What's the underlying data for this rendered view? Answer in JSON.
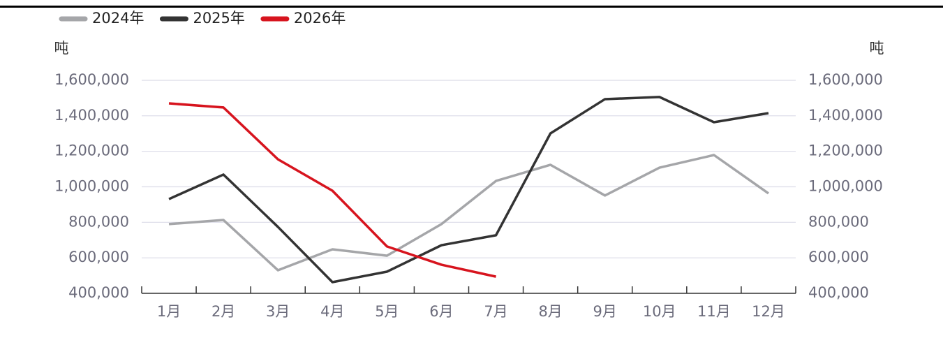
{
  "chart_data": {
    "type": "line",
    "y_label": "吨",
    "y2_label": "吨",
    "categories": [
      "1月",
      "2月",
      "3月",
      "4月",
      "5月",
      "6月",
      "7月",
      "8月",
      "9月",
      "10月",
      "11月",
      "12月"
    ],
    "series": [
      {
        "name": "2024年",
        "color": "#a5a6a9",
        "values": [
          790000,
          813000,
          530000,
          648000,
          612000,
          790000,
          1033000,
          1124000,
          951000,
          1108000,
          1179000,
          963000
        ]
      },
      {
        "name": "2025年",
        "color": "#333333",
        "values": [
          931000,
          1069000,
          774000,
          463000,
          522000,
          671000,
          727000,
          1301000,
          1494000,
          1506000,
          1364000,
          1415000
        ]
      },
      {
        "name": "2026年",
        "color": "#d7141e",
        "values": [
          1470000,
          1447000,
          1155000,
          978000,
          664000,
          561000,
          494000,
          null,
          null,
          null,
          null,
          null
        ]
      }
    ],
    "ylim": [
      400000,
      1600000
    ],
    "yticks": [
      {
        "value": 400000,
        "label": "400,000"
      },
      {
        "value": 600000,
        "label": "600,000"
      },
      {
        "value": 800000,
        "label": "800,000"
      },
      {
        "value": 1000000,
        "label": "1,000,000"
      },
      {
        "value": 1200000,
        "label": "1,200,000"
      },
      {
        "value": 1400000,
        "label": "1,400,000"
      },
      {
        "value": 1600000,
        "label": "1,600,000"
      }
    ],
    "y2lim": [
      400000,
      1600000
    ],
    "y2ticks": [
      {
        "value": 400000,
        "label": "400,000"
      },
      {
        "value": 600000,
        "label": "600,000"
      },
      {
        "value": 800000,
        "label": "800,000"
      },
      {
        "value": 1000000,
        "label": "1,000,000"
      },
      {
        "value": 1200000,
        "label": "1,200,000"
      },
      {
        "value": 1400000,
        "label": "1,400,000"
      },
      {
        "value": 1600000,
        "label": "1,600,000"
      }
    ],
    "grid": true,
    "legend": "top-left"
  }
}
